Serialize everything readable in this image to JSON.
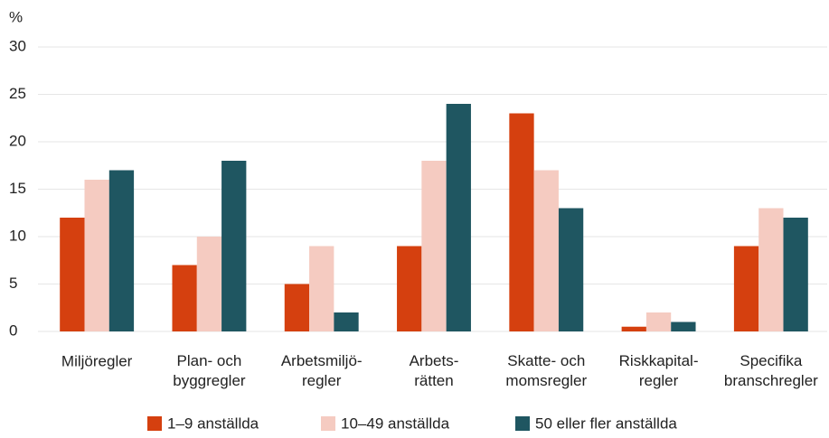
{
  "chart_data": {
    "type": "bar",
    "y_label": "%",
    "categories": [
      "Miljöregler",
      "Plan- och\nbyggregler",
      "Arbetsmiljö-\nregler",
      "Arbets-\nrätten",
      "Skatte- och\nmomsregler",
      "Riskkapital-\nregler",
      "Specifika\nbranschregler"
    ],
    "series": [
      {
        "name": "1–9 anställda",
        "color": "#d5400f",
        "values": [
          12,
          7,
          5,
          9,
          23,
          0.5,
          9
        ]
      },
      {
        "name": "10–49 anställda",
        "color": "#f5cbc1",
        "values": [
          16,
          10,
          9,
          18,
          17,
          2,
          13
        ]
      },
      {
        "name": "50 eller fler anställda",
        "color": "#1f5661",
        "values": [
          17,
          18,
          2,
          24,
          13,
          1,
          12
        ]
      }
    ],
    "ylim": [
      0,
      30
    ],
    "yticks": [
      0,
      5,
      10,
      15,
      20,
      25,
      30
    ],
    "grid": true,
    "legend": "bottom"
  }
}
